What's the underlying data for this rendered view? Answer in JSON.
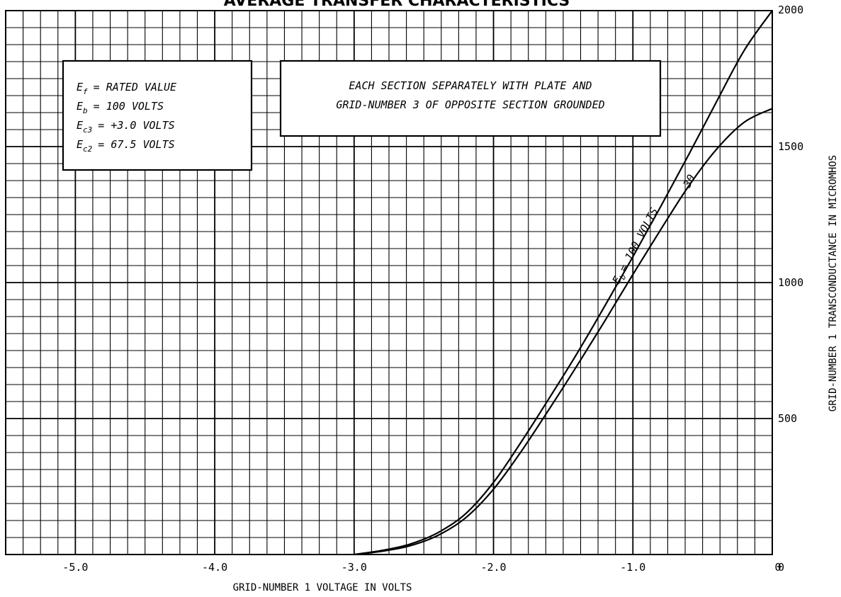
{
  "chart_data": {
    "type": "line",
    "title": "AVERAGE TRANSFER CHARACTERISTICS",
    "xlabel": "GRID-NUMBER 1 VOLTAGE IN VOLTS",
    "ylabel": "GRID-NUMBER 1 TRANSCONDUCTANCE IN MICROMHOS",
    "xlim": [
      -5.5,
      0
    ],
    "ylim": [
      0,
      2000
    ],
    "x_ticks": [
      "-5.0",
      "-4.0",
      "-3.0",
      "-2.0",
      "-1.0",
      "0"
    ],
    "x_tick_values": [
      -5.0,
      -4.0,
      -3.0,
      -2.0,
      -1.0,
      0
    ],
    "y_ticks": [
      "0",
      "500",
      "1000",
      "1500",
      "2000"
    ],
    "y_tick_values": [
      0,
      500,
      1000,
      1500,
      2000
    ],
    "grid": true,
    "series": [
      {
        "name": "100 VOLTS",
        "points": [
          [
            -3.0,
            0
          ],
          [
            -2.8,
            15
          ],
          [
            -2.6,
            38
          ],
          [
            -2.4,
            80
          ],
          [
            -2.2,
            150
          ],
          [
            -2.0,
            265
          ],
          [
            -1.8,
            415
          ],
          [
            -1.6,
            575
          ],
          [
            -1.4,
            740
          ],
          [
            -1.2,
            915
          ],
          [
            -1.0,
            1095
          ],
          [
            -0.8,
            1280
          ],
          [
            -0.6,
            1470
          ],
          [
            -0.4,
            1665
          ],
          [
            -0.2,
            1855
          ],
          [
            0.0,
            2000
          ]
        ]
      },
      {
        "name": "30",
        "points": [
          [
            -3.0,
            0
          ],
          [
            -2.8,
            12
          ],
          [
            -2.6,
            32
          ],
          [
            -2.4,
            70
          ],
          [
            -2.2,
            135
          ],
          [
            -2.0,
            240
          ],
          [
            -1.8,
            380
          ],
          [
            -1.6,
            535
          ],
          [
            -1.4,
            695
          ],
          [
            -1.2,
            860
          ],
          [
            -1.0,
            1030
          ],
          [
            -0.8,
            1195
          ],
          [
            -0.6,
            1355
          ],
          [
            -0.4,
            1490
          ],
          [
            -0.2,
            1590
          ],
          [
            0.0,
            1640
          ]
        ]
      }
    ],
    "curve_label": {
      "prefix": "E",
      "subscript": "b",
      "text": "= 100 VOLTS",
      "second": "30"
    },
    "annotations": {
      "conditions_box": [
        {
          "sym": "E",
          "sub": "f",
          "text": "= RATED VALUE"
        },
        {
          "sym": "E",
          "sub": "b",
          "text": "= 100 VOLTS"
        },
        {
          "sym": "E",
          "sub": "c3",
          "text": "= +3.0 VOLTS"
        },
        {
          "sym": "E",
          "sub": "c2",
          "text": "= 67.5 VOLTS"
        }
      ],
      "note_box": [
        "EACH SECTION SEPARATELY WITH PLATE AND",
        "GRID-NUMBER 3 OF OPPOSITE SECTION GROUNDED"
      ]
    }
  }
}
